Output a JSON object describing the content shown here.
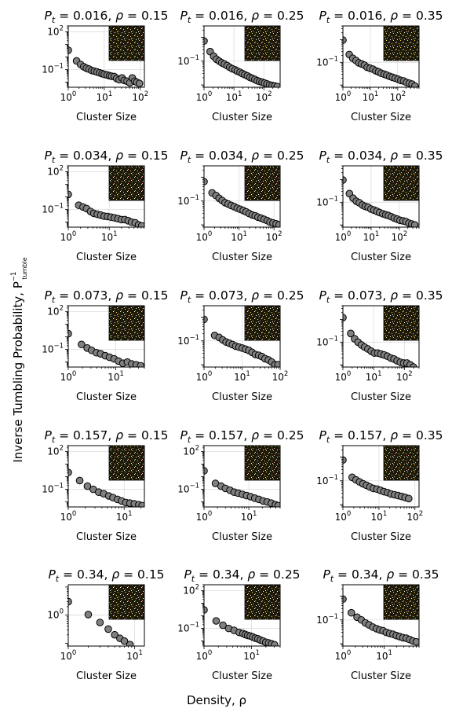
{
  "figure": {
    "xlabel": "Density, ρ",
    "ylabel": "Inverse Tumbling Probability, P",
    "ylabel_sup": "−1",
    "ylabel_sub": "tumble",
    "panel_xlabel": "Cluster Size"
  },
  "chart_data": {
    "type": "scatter",
    "x_scale": "log",
    "y_scale": "log",
    "marker": {
      "shape": "circle",
      "fill": "#808080",
      "edge": "#000000"
    },
    "grid": true,
    "inset": "top-right lattice snapshot (dark background with white, yellow and pink particles)",
    "panels": [
      {
        "pt": "0.016",
        "rho": "0.15",
        "xlim": [
          1,
          130
        ],
        "ylim": [
          0.004,
          300
        ],
        "xticks": [
          {
            "v": 1,
            "b": "10",
            "e": "0"
          },
          {
            "v": 10,
            "b": "10",
            "e": "1"
          },
          {
            "v": 100,
            "b": "10",
            "e": "2"
          }
        ],
        "yticks": [
          {
            "v": 100,
            "b": "10",
            "e": "2"
          },
          {
            "v": 0.1,
            "b": "10",
            "e": "−1"
          }
        ],
        "x": [
          1,
          1.7,
          2.2,
          2.7,
          3.2,
          3.8,
          4.5,
          5.3,
          6.3,
          7.4,
          8.7,
          10,
          12,
          14,
          16,
          19,
          22,
          26,
          31,
          36,
          43,
          51,
          60,
          70,
          80,
          95
        ],
        "y": [
          3.5,
          0.5,
          0.26,
          0.17,
          0.13,
          0.11,
          0.085,
          0.075,
          0.066,
          0.056,
          0.048,
          0.042,
          0.038,
          0.033,
          0.03,
          0.028,
          0.02,
          0.016,
          0.022,
          0.014,
          0.012,
          0.009,
          0.022,
          0.012,
          0.01,
          0.008
        ]
      },
      {
        "pt": "0.016",
        "rho": "0.25",
        "xlim": [
          1,
          350
        ],
        "ylim": [
          0.008,
          3
        ],
        "xticks": [
          {
            "v": 1,
            "b": "10",
            "e": "0"
          },
          {
            "v": 10,
            "b": "10",
            "e": "1"
          },
          {
            "v": 100,
            "b": "10",
            "e": "2"
          }
        ],
        "yticks": [
          {
            "v": 0.1,
            "b": "10",
            "e": "−1"
          }
        ],
        "x": [
          1,
          1.6,
          2.1,
          2.6,
          3.2,
          3.9,
          4.8,
          5.9,
          7.2,
          8.8,
          11,
          13,
          16,
          19,
          23,
          28,
          34,
          41,
          50,
          60,
          72,
          87,
          105,
          127,
          155,
          190,
          230,
          280
        ],
        "y": [
          0.7,
          0.25,
          0.16,
          0.12,
          0.1,
          0.085,
          0.075,
          0.065,
          0.055,
          0.048,
          0.043,
          0.038,
          0.034,
          0.03,
          0.027,
          0.024,
          0.021,
          0.019,
          0.017,
          0.015,
          0.014,
          0.013,
          0.012,
          0.011,
          0.01,
          0.0095,
          0.009,
          0.0085
        ]
      },
      {
        "pt": "0.016",
        "rho": "0.35",
        "xlim": [
          1,
          600
        ],
        "ylim": [
          0.008,
          4
        ],
        "xticks": [
          {
            "v": 1,
            "b": "10",
            "e": "0"
          },
          {
            "v": 10,
            "b": "10",
            "e": "1"
          },
          {
            "v": 100,
            "b": "10",
            "e": "2"
          }
        ],
        "yticks": [
          {
            "v": 0.1,
            "b": "10",
            "e": "−1"
          }
        ],
        "x": [
          1,
          1.7,
          2.3,
          3,
          3.8,
          4.8,
          6.1,
          7.7,
          9.8,
          12.5,
          16,
          20,
          25,
          32,
          40,
          51,
          64,
          81,
          103,
          130,
          165,
          210,
          265,
          335,
          425
        ],
        "y": [
          0.95,
          0.22,
          0.15,
          0.12,
          0.095,
          0.085,
          0.075,
          0.06,
          0.055,
          0.05,
          0.042,
          0.038,
          0.033,
          0.03,
          0.027,
          0.024,
          0.022,
          0.02,
          0.018,
          0.016,
          0.015,
          0.013,
          0.012,
          0.011,
          0.009
        ]
      },
      {
        "pt": "0.034",
        "rho": "0.15",
        "xlim": [
          1,
          72
        ],
        "ylim": [
          0.004,
          300
        ],
        "xticks": [
          {
            "v": 1,
            "b": "10",
            "e": "0"
          },
          {
            "v": 10,
            "b": "10",
            "e": "1"
          }
        ],
        "yticks": [
          {
            "v": 100,
            "b": "10",
            "e": "2"
          },
          {
            "v": 0.1,
            "b": "10",
            "e": "−1"
          }
        ],
        "x": [
          1,
          1.8,
          2.3,
          2.8,
          3.5,
          4.2,
          5.1,
          6.2,
          7.5,
          9.1,
          11,
          13.4,
          16.3,
          19.8,
          24,
          29,
          35,
          43,
          52,
          62
        ],
        "y": [
          1.6,
          0.22,
          0.16,
          0.12,
          0.07,
          0.05,
          0.042,
          0.036,
          0.03,
          0.028,
          0.025,
          0.022,
          0.019,
          0.016,
          0.016,
          0.013,
          0.01,
          0.009,
          0.006,
          0.005
        ]
      },
      {
        "pt": "0.034",
        "rho": "0.25",
        "xlim": [
          1,
          150
        ],
        "ylim": [
          0.008,
          3
        ],
        "xticks": [
          {
            "v": 1,
            "b": "10",
            "e": "0"
          },
          {
            "v": 10,
            "b": "10",
            "e": "1"
          },
          {
            "v": 100,
            "b": "10",
            "e": "2"
          }
        ],
        "yticks": [
          {
            "v": 0.1,
            "b": "10",
            "e": "−1"
          }
        ],
        "x": [
          1,
          1.7,
          2.2,
          2.7,
          3.3,
          4,
          4.9,
          6,
          7.3,
          8.9,
          10.8,
          13.2,
          16,
          19.5,
          23.8,
          29,
          35,
          43,
          52,
          64,
          77,
          94,
          115,
          140
        ],
        "y": [
          0.65,
          0.22,
          0.17,
          0.13,
          0.105,
          0.085,
          0.075,
          0.065,
          0.058,
          0.05,
          0.045,
          0.04,
          0.035,
          0.03,
          0.026,
          0.024,
          0.021,
          0.019,
          0.017,
          0.015,
          0.013,
          0.012,
          0.011,
          0.01
        ]
      },
      {
        "pt": "0.034",
        "rho": "0.35",
        "xlim": [
          1,
          500
        ],
        "ylim": [
          0.008,
          4
        ],
        "xticks": [
          {
            "v": 1,
            "b": "10",
            "e": "0"
          },
          {
            "v": 10,
            "b": "10",
            "e": "1"
          },
          {
            "v": 100,
            "b": "10",
            "e": "2"
          }
        ],
        "yticks": [
          {
            "v": 0.1,
            "b": "10",
            "e": "−1"
          }
        ],
        "x": [
          1,
          1.7,
          2.3,
          3,
          3.8,
          4.9,
          6.2,
          7.8,
          9.9,
          12.6,
          16,
          20,
          26,
          33,
          41,
          52,
          66,
          84,
          106,
          135,
          172,
          218,
          277,
          352
        ],
        "y": [
          0.95,
          0.24,
          0.15,
          0.11,
          0.095,
          0.075,
          0.065,
          0.06,
          0.05,
          0.045,
          0.04,
          0.035,
          0.031,
          0.028,
          0.026,
          0.023,
          0.02,
          0.018,
          0.016,
          0.015,
          0.014,
          0.012,
          0.011,
          0.01
        ]
      },
      {
        "pt": "0.073",
        "rho": "0.15",
        "xlim": [
          1,
          40
        ],
        "ylim": [
          0.004,
          300
        ],
        "xticks": [
          {
            "v": 1,
            "b": "10",
            "e": "0"
          },
          {
            "v": 10,
            "b": "10",
            "e": "1"
          }
        ],
        "yticks": [
          {
            "v": 100,
            "b": "10",
            "e": "2"
          },
          {
            "v": 0.1,
            "b": "10",
            "e": "−1"
          }
        ],
        "x": [
          1,
          1.9,
          2.5,
          3.1,
          3.9,
          4.8,
          6,
          7.4,
          9.2,
          11.4,
          14.1,
          17.5,
          21.7,
          26.9,
          33.4
        ],
        "y": [
          1.8,
          0.25,
          0.13,
          0.085,
          0.055,
          0.045,
          0.032,
          0.024,
          0.018,
          0.012,
          0.008,
          0.01,
          0.007,
          0.006,
          0.005
        ]
      },
      {
        "pt": "0.073",
        "rho": "0.25",
        "xlim": [
          1,
          100
        ],
        "ylim": [
          0.008,
          3
        ],
        "xticks": [
          {
            "v": 1,
            "b": "10",
            "e": "0"
          },
          {
            "v": 10,
            "b": "10",
            "e": "1"
          },
          {
            "v": 100,
            "b": "10",
            "e": "2"
          }
        ],
        "yticks": [
          {
            "v": 0.1,
            "b": "10",
            "e": "−1"
          }
        ],
        "x": [
          1,
          1.9,
          2.5,
          3.1,
          3.8,
          4.6,
          5.6,
          6.8,
          8.3,
          10.1,
          12.3,
          15,
          18.3,
          22.3,
          27.2,
          33,
          40,
          49,
          60,
          73,
          88
        ],
        "y": [
          0.8,
          0.17,
          0.14,
          0.11,
          0.09,
          0.08,
          0.07,
          0.06,
          0.055,
          0.05,
          0.045,
          0.04,
          0.033,
          0.027,
          0.025,
          0.022,
          0.018,
          0.016,
          0.013,
          0.01,
          0.01
        ]
      },
      {
        "pt": "0.073",
        "rho": "0.35",
        "xlim": [
          1,
          300
        ],
        "ylim": [
          0.008,
          4
        ],
        "xticks": [
          {
            "v": 1,
            "b": "10",
            "e": "0"
          },
          {
            "v": 10,
            "b": "10",
            "e": "1"
          },
          {
            "v": 100,
            "b": "10",
            "e": "2"
          }
        ],
        "yticks": [
          {
            "v": 0.1,
            "b": "10",
            "e": "−1"
          }
        ],
        "x": [
          1,
          1.8,
          2.4,
          3.1,
          4,
          5.1,
          6.5,
          8.3,
          10.6,
          13.5,
          17.2,
          22,
          28,
          36,
          46,
          58,
          74,
          95,
          121,
          155,
          197
        ],
        "y": [
          1.2,
          0.24,
          0.14,
          0.1,
          0.075,
          0.06,
          0.05,
          0.04,
          0.033,
          0.033,
          0.03,
          0.027,
          0.024,
          0.02,
          0.018,
          0.015,
          0.013,
          0.012,
          0.012,
          0.01,
          0.008
        ]
      },
      {
        "pt": "0.157",
        "rho": "0.15",
        "xlim": [
          1,
          23
        ],
        "ylim": [
          0.004,
          300
        ],
        "xticks": [
          {
            "v": 1,
            "b": "10",
            "e": "0"
          },
          {
            "v": 10,
            "b": "10",
            "e": "1"
          }
        ],
        "yticks": [
          {
            "v": 100,
            "b": "10",
            "e": "2"
          },
          {
            "v": 0.1,
            "b": "10",
            "e": "−1"
          }
        ],
        "x": [
          1,
          1.6,
          2.2,
          2.8,
          3.5,
          4.3,
          5.3,
          6.3,
          7.6,
          9,
          10.7,
          12.7,
          15.2,
          18.3,
          21
        ],
        "y": [
          2.2,
          0.5,
          0.18,
          0.1,
          0.06,
          0.045,
          0.03,
          0.022,
          0.016,
          0.012,
          0.009,
          0.008,
          0.007,
          0.006,
          0.005
        ]
      },
      {
        "pt": "0.157",
        "rho": "0.25",
        "xlim": [
          1,
          50
        ],
        "ylim": [
          0.004,
          300
        ],
        "xticks": [
          {
            "v": 1,
            "b": "10",
            "e": "0"
          },
          {
            "v": 10,
            "b": "10",
            "e": "1"
          }
        ],
        "yticks": [
          {
            "v": 100,
            "b": "10",
            "e": "2"
          },
          {
            "v": 0.1,
            "b": "10",
            "e": "−1"
          }
        ],
        "x": [
          1,
          1.8,
          2.4,
          3,
          3.8,
          4.7,
          5.8,
          7.2,
          8.9,
          11,
          13.6,
          16.8,
          20.8,
          25.7,
          31.8,
          39.3,
          45
        ],
        "y": [
          3,
          0.3,
          0.18,
          0.12,
          0.085,
          0.06,
          0.05,
          0.04,
          0.032,
          0.026,
          0.02,
          0.016,
          0.012,
          0.01,
          0.008,
          0.006,
          0.005
        ]
      },
      {
        "pt": "0.157",
        "rho": "0.35",
        "xlim": [
          1,
          130
        ],
        "ylim": [
          0.008,
          3
        ],
        "xticks": [
          {
            "v": 1,
            "b": "10",
            "e": "0"
          },
          {
            "v": 10,
            "b": "10",
            "e": "1"
          },
          {
            "v": 100,
            "b": "10",
            "e": "2"
          }
        ],
        "yticks": [
          {
            "v": 0.1,
            "b": "10",
            "e": "−1"
          }
        ],
        "x": [
          1,
          1.8,
          2.3,
          2.9,
          3.6,
          4.5,
          5.6,
          7,
          8.8,
          11,
          13.8,
          17.3,
          21.7,
          27.2,
          34,
          42.7,
          53.5,
          67
        ],
        "y": [
          0.75,
          0.14,
          0.11,
          0.09,
          0.075,
          0.065,
          0.055,
          0.048,
          0.045,
          0.04,
          0.035,
          0.032,
          0.028,
          0.026,
          0.024,
          0.022,
          0.02,
          0.018
        ]
      },
      {
        "pt": "0.34",
        "rho": "0.15",
        "xlim": [
          1,
          14
        ],
        "ylim": [
          0.08,
          12
        ],
        "xticks": [
          {
            "v": 1,
            "b": "10",
            "e": "0"
          },
          {
            "v": 10,
            "b": "10",
            "e": "1"
          }
        ],
        "yticks": [
          {
            "v": 1,
            "b": "10",
            "e": "0"
          }
        ],
        "x": [
          1,
          2,
          3,
          4,
          5,
          6,
          7,
          8.5
        ],
        "y": [
          3,
          1.05,
          0.55,
          0.32,
          0.2,
          0.15,
          0.12,
          0.09
        ]
      },
      {
        "pt": "0.34",
        "rho": "0.25",
        "xlim": [
          1,
          40
        ],
        "ylim": [
          0.004,
          300
        ],
        "xticks": [
          {
            "v": 1,
            "b": "10",
            "e": "0"
          },
          {
            "v": 10,
            "b": "10",
            "e": "1"
          }
        ],
        "yticks": [
          {
            "v": 100,
            "b": "10",
            "e": "2"
          },
          {
            "v": 0.1,
            "b": "10",
            "e": "−1"
          }
        ],
        "x": [
          1,
          1.8,
          2.5,
          3.3,
          4.3,
          5.5,
          6.6,
          7.4,
          8.3,
          9.4,
          10.6,
          12,
          13.6,
          15.4,
          17.5,
          20,
          23,
          26.5,
          30.5
        ],
        "y": [
          3,
          0.4,
          0.18,
          0.1,
          0.07,
          0.048,
          0.04,
          0.033,
          0.028,
          0.025,
          0.021,
          0.017,
          0.015,
          0.012,
          0.01,
          0.008,
          0.007,
          0.006,
          0.005
        ]
      },
      {
        "pt": "0.34",
        "rho": "0.35",
        "xlim": [
          1,
          70
        ],
        "ylim": [
          0.008,
          3
        ],
        "xticks": [
          {
            "v": 1,
            "b": "10",
            "e": "0"
          },
          {
            "v": 10,
            "b": "10",
            "e": "1"
          }
        ],
        "yticks": [
          {
            "v": 0.1,
            "b": "10",
            "e": "−1"
          }
        ],
        "x": [
          1,
          1.6,
          2.2,
          2.8,
          3.5,
          4.3,
          5.3,
          6.5,
          7.8,
          9.4,
          11.3,
          13.6,
          16.4,
          19.7,
          23.7,
          28.5,
          34.3,
          41.3,
          49.7,
          60
        ],
        "y": [
          0.75,
          0.2,
          0.13,
          0.1,
          0.075,
          0.062,
          0.05,
          0.043,
          0.038,
          0.035,
          0.03,
          0.027,
          0.025,
          0.022,
          0.02,
          0.018,
          0.017,
          0.015,
          0.013,
          0.012
        ]
      }
    ]
  }
}
